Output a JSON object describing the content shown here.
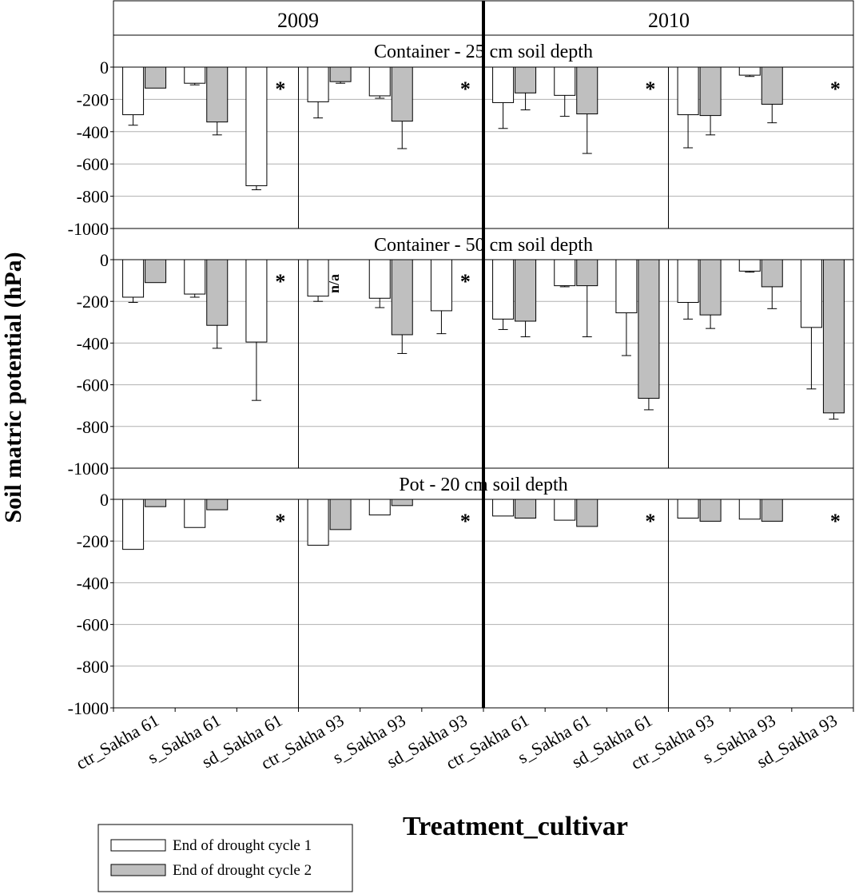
{
  "chart_data": {
    "type": "bar",
    "xlabel": "Treatment_cultivar",
    "ylabel": "Soil matric potential (hPa)",
    "ylim": [
      -1000,
      0
    ],
    "yticks": [
      "0",
      "-200",
      "-400",
      "-600",
      "-800",
      "-1000"
    ],
    "grid": true,
    "legend_position": "bottom-left",
    "years": [
      "2009",
      "2010"
    ],
    "categories": [
      "ctr_Sakha 61",
      "s_Sakha 61",
      "sd_Sakha 61",
      "ctr_Sakha 93",
      "s_Sakha 93",
      "sd_Sakha 93",
      "ctr_Sakha 61",
      "s_Sakha 61",
      "sd_Sakha 61",
      "ctr_Sakha 93",
      "s_Sakha 93",
      "sd_Sakha 93"
    ],
    "series": [
      {
        "name": "End of drought cycle 1",
        "color": "#ffffff"
      },
      {
        "name": "End of drought cycle 2",
        "color": "#bfbfbf"
      }
    ],
    "panels": [
      {
        "title": "Container - 25 cm soil depth",
        "cycle1": [
          -295,
          -100,
          -735,
          -215,
          -178,
          null,
          -220,
          -175,
          null,
          -295,
          -50,
          null
        ],
        "cycle1_err": [
          65,
          10,
          25,
          100,
          15,
          null,
          160,
          130,
          null,
          205,
          8,
          null
        ],
        "cycle2": [
          -130,
          -340,
          null,
          -90,
          -335,
          null,
          -160,
          -290,
          null,
          -300,
          -230,
          null
        ],
        "cycle2_err": [
          0,
          80,
          null,
          10,
          170,
          null,
          105,
          245,
          null,
          120,
          115,
          null
        ],
        "markers": [
          {
            "index": 2,
            "label": "*"
          },
          {
            "index": 5,
            "label": "*"
          },
          {
            "index": 8,
            "label": "*"
          },
          {
            "index": 11,
            "label": "*"
          }
        ]
      },
      {
        "title": "Container - 50 cm soil depth",
        "cycle1": [
          -180,
          -165,
          -395,
          -175,
          -185,
          -245,
          -285,
          -125,
          -255,
          -205,
          -55,
          -325
        ],
        "cycle1_err": [
          25,
          15,
          280,
          25,
          45,
          110,
          50,
          5,
          205,
          80,
          5,
          295
        ],
        "cycle2": [
          -110,
          -315,
          null,
          null,
          -360,
          null,
          -295,
          -125,
          -665,
          -265,
          -130,
          -735
        ],
        "cycle2_err": [
          0,
          110,
          null,
          null,
          90,
          null,
          75,
          245,
          55,
          65,
          105,
          30
        ],
        "markers": [
          {
            "index": 2,
            "label": "*"
          },
          {
            "index": 3,
            "label": "n/a"
          },
          {
            "index": 5,
            "label": "*"
          }
        ]
      },
      {
        "title": "Pot - 20 cm soil depth",
        "cycle1": [
          -240,
          -135,
          null,
          -220,
          -75,
          null,
          -80,
          -100,
          null,
          -90,
          -95,
          null
        ],
        "cycle1_err": [
          0,
          0,
          null,
          0,
          0,
          null,
          0,
          0,
          null,
          0,
          0,
          null
        ],
        "cycle2": [
          -35,
          -50,
          null,
          -145,
          -30,
          null,
          -90,
          -130,
          null,
          -105,
          -105,
          null
        ],
        "cycle2_err": [
          0,
          0,
          null,
          0,
          0,
          null,
          0,
          0,
          null,
          0,
          0,
          null
        ],
        "markers": [
          {
            "index": 2,
            "label": "*"
          },
          {
            "index": 5,
            "label": "*"
          },
          {
            "index": 8,
            "label": "*"
          },
          {
            "index": 11,
            "label": "*"
          }
        ]
      }
    ]
  }
}
